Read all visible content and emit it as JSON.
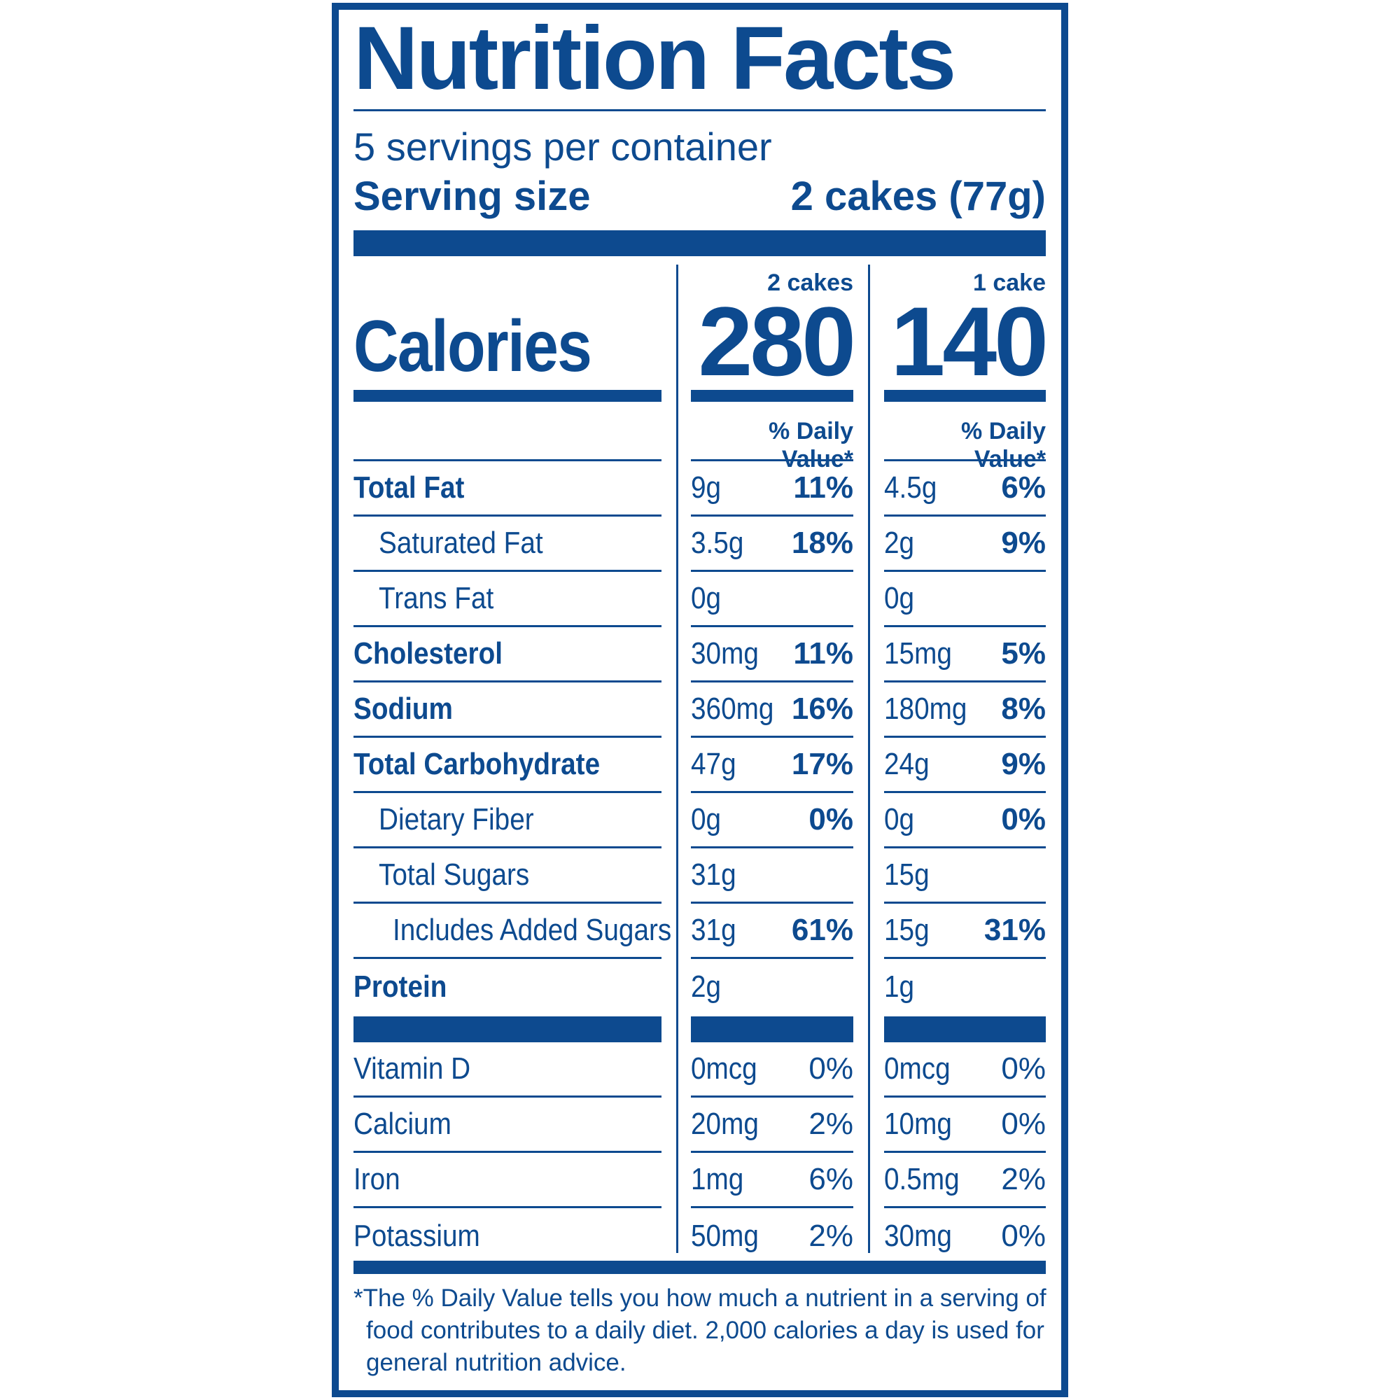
{
  "title": "Nutrition Facts",
  "servings_per_container": "5 servings per container",
  "serving_size": {
    "label": "Serving size",
    "value": "2 cakes (77g)"
  },
  "calories": {
    "label": "Calories",
    "columns": [
      {
        "header": "2 cakes",
        "value": "280",
        "dv_header": "% Daily Value*"
      },
      {
        "header": "1 cake",
        "value": "140",
        "dv_header": "% Daily Value*"
      }
    ]
  },
  "nutrients": [
    {
      "name": "Total Fat",
      "bold": true,
      "indent": 0,
      "values": [
        {
          "amount": "9g",
          "dv": "11%"
        },
        {
          "amount": "4.5g",
          "dv": "6%"
        }
      ]
    },
    {
      "name": "Saturated Fat",
      "bold": false,
      "indent": 1,
      "values": [
        {
          "amount": "3.5g",
          "dv": "18%"
        },
        {
          "amount": "2g",
          "dv": "9%"
        }
      ]
    },
    {
      "name": "Trans Fat",
      "bold": false,
      "indent": 1,
      "values": [
        {
          "amount": "0g",
          "dv": ""
        },
        {
          "amount": "0g",
          "dv": ""
        }
      ]
    },
    {
      "name": "Cholesterol",
      "bold": true,
      "indent": 0,
      "values": [
        {
          "amount": "30mg",
          "dv": "11%"
        },
        {
          "amount": "15mg",
          "dv": "5%"
        }
      ]
    },
    {
      "name": "Sodium",
      "bold": true,
      "indent": 0,
      "values": [
        {
          "amount": "360mg",
          "dv": "16%"
        },
        {
          "amount": "180mg",
          "dv": "8%"
        }
      ]
    },
    {
      "name": "Total Carbohydrate",
      "bold": true,
      "indent": 0,
      "values": [
        {
          "amount": "47g",
          "dv": "17%"
        },
        {
          "amount": "24g",
          "dv": "9%"
        }
      ]
    },
    {
      "name": "Dietary Fiber",
      "bold": false,
      "indent": 1,
      "values": [
        {
          "amount": "0g",
          "dv": "0%"
        },
        {
          "amount": "0g",
          "dv": "0%"
        }
      ]
    },
    {
      "name": "Total Sugars",
      "bold": false,
      "indent": 1,
      "values": [
        {
          "amount": "31g",
          "dv": ""
        },
        {
          "amount": "15g",
          "dv": ""
        }
      ]
    },
    {
      "name": "Includes Added Sugars",
      "bold": false,
      "indent": 2,
      "values": [
        {
          "amount": "31g",
          "dv": "61%"
        },
        {
          "amount": "15g",
          "dv": "31%"
        }
      ]
    },
    {
      "name": "Protein",
      "bold": true,
      "indent": 0,
      "values": [
        {
          "amount": "2g",
          "dv": ""
        },
        {
          "amount": "1g",
          "dv": ""
        }
      ]
    }
  ],
  "vitamins": [
    {
      "name": "Vitamin D",
      "values": [
        {
          "amount": "0mcg",
          "dv": "0%"
        },
        {
          "amount": "0mcg",
          "dv": "0%"
        }
      ]
    },
    {
      "name": "Calcium",
      "values": [
        {
          "amount": "20mg",
          "dv": "2%"
        },
        {
          "amount": "10mg",
          "dv": "0%"
        }
      ]
    },
    {
      "name": "Iron",
      "values": [
        {
          "amount": "1mg",
          "dv": "6%"
        },
        {
          "amount": "0.5mg",
          "dv": "2%"
        }
      ]
    },
    {
      "name": "Potassium",
      "values": [
        {
          "amount": "50mg",
          "dv": "2%"
        },
        {
          "amount": "30mg",
          "dv": "0%"
        }
      ]
    }
  ],
  "footnote": {
    "line1": "*The % Daily Value tells you how much a nutrient in a serving of",
    "line2": "food contributes to a daily diet. 2,000 calories a day is used for",
    "line3": "general nutrition advice."
  },
  "colors": {
    "ink": "#0d4a8f",
    "background": "#ffffff"
  }
}
